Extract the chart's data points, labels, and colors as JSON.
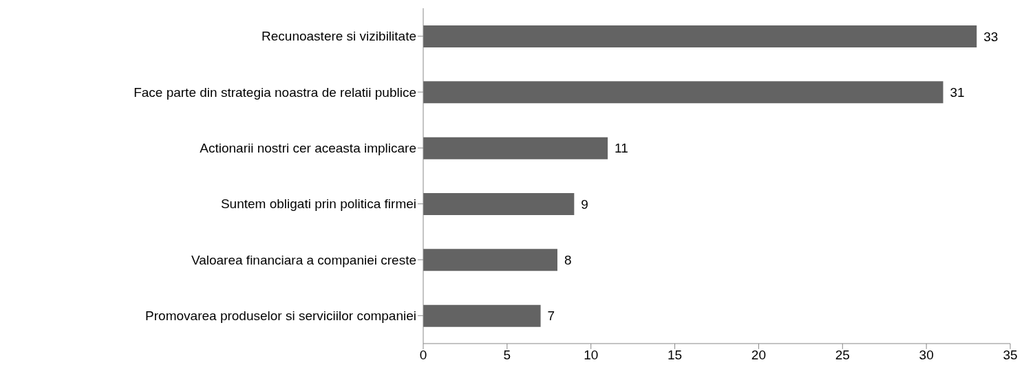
{
  "chart_data": {
    "type": "bar",
    "orientation": "horizontal",
    "categories": [
      "Recunoastere si vizibilitate",
      "Face parte din strategia noastra de relatii publice",
      "Actionarii nostri cer aceasta implicare",
      "Suntem obligati prin politica firmei",
      "Valoarea financiara a companiei creste",
      "Promovarea produselor si serviciilor companiei"
    ],
    "values": [
      33,
      31,
      11,
      9,
      8,
      7
    ],
    "color": "#636363",
    "xlim": [
      0,
      35
    ],
    "xticks": [
      0,
      5,
      10,
      15,
      20,
      25,
      30,
      35
    ],
    "data_labels": true,
    "grid": false,
    "legend": false
  }
}
